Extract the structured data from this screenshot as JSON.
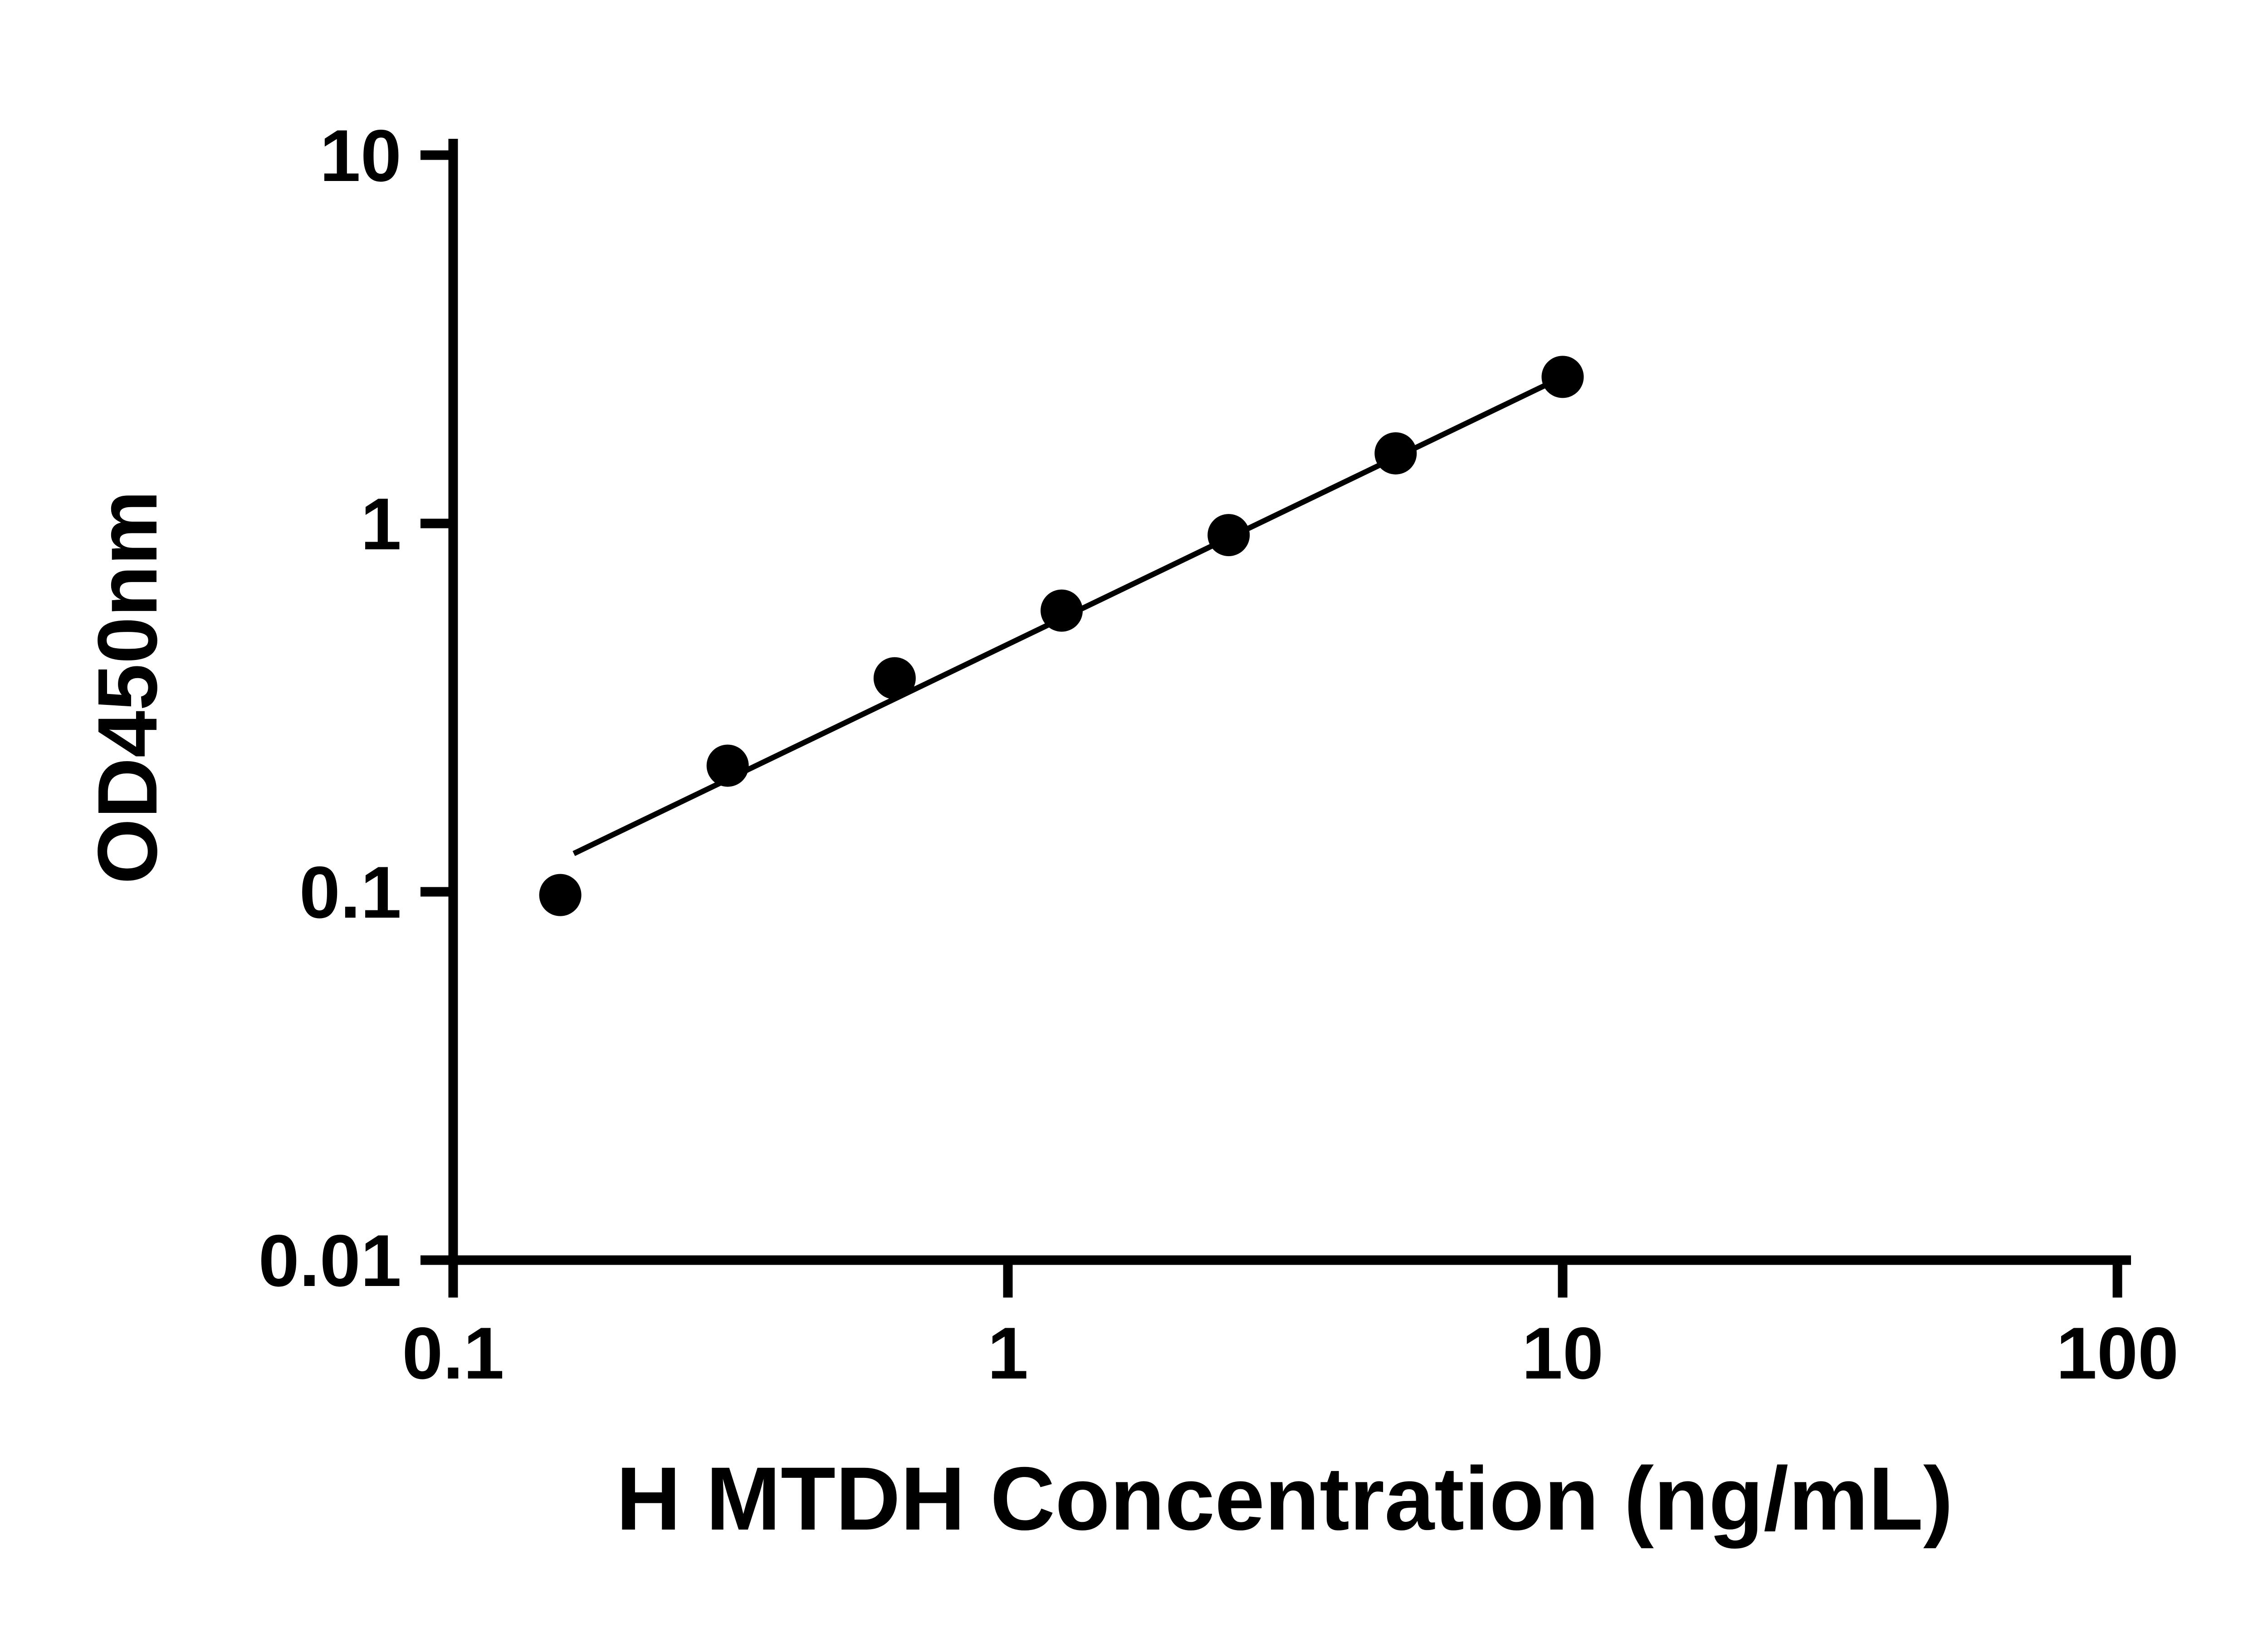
{
  "chart_data": {
    "type": "scatter",
    "title": "",
    "xlabel": "H MTDH Concentration (ng/mL)",
    "ylabel": "OD450nm",
    "x_scale": "log",
    "y_scale": "log",
    "xlim": [
      0.1,
      100
    ],
    "ylim": [
      0.01,
      10
    ],
    "x_ticks": [
      0.1,
      1,
      10,
      100
    ],
    "x_tick_labels": [
      "0.1",
      "1",
      "10",
      "100"
    ],
    "y_ticks": [
      0.01,
      0.1,
      1,
      10
    ],
    "y_tick_labels": [
      "0.01",
      "0.1",
      "1",
      "10"
    ],
    "grid": false,
    "legend": null,
    "series": [
      {
        "marker": "filled-circle",
        "color": "#000000",
        "points": [
          {
            "x": 0.156,
            "y": 0.098
          },
          {
            "x": 0.3125,
            "y": 0.22
          },
          {
            "x": 0.625,
            "y": 0.38
          },
          {
            "x": 1.25,
            "y": 0.58
          },
          {
            "x": 2.5,
            "y": 0.93
          },
          {
            "x": 5,
            "y": 1.55
          },
          {
            "x": 10,
            "y": 2.5
          }
        ]
      }
    ],
    "fit_line": {
      "x_start": 0.165,
      "y_start": 0.127,
      "x_end": 10,
      "y_end": 2.5,
      "color": "#000000"
    }
  },
  "colors": {
    "background": "#ffffff",
    "foreground": "#000000"
  }
}
